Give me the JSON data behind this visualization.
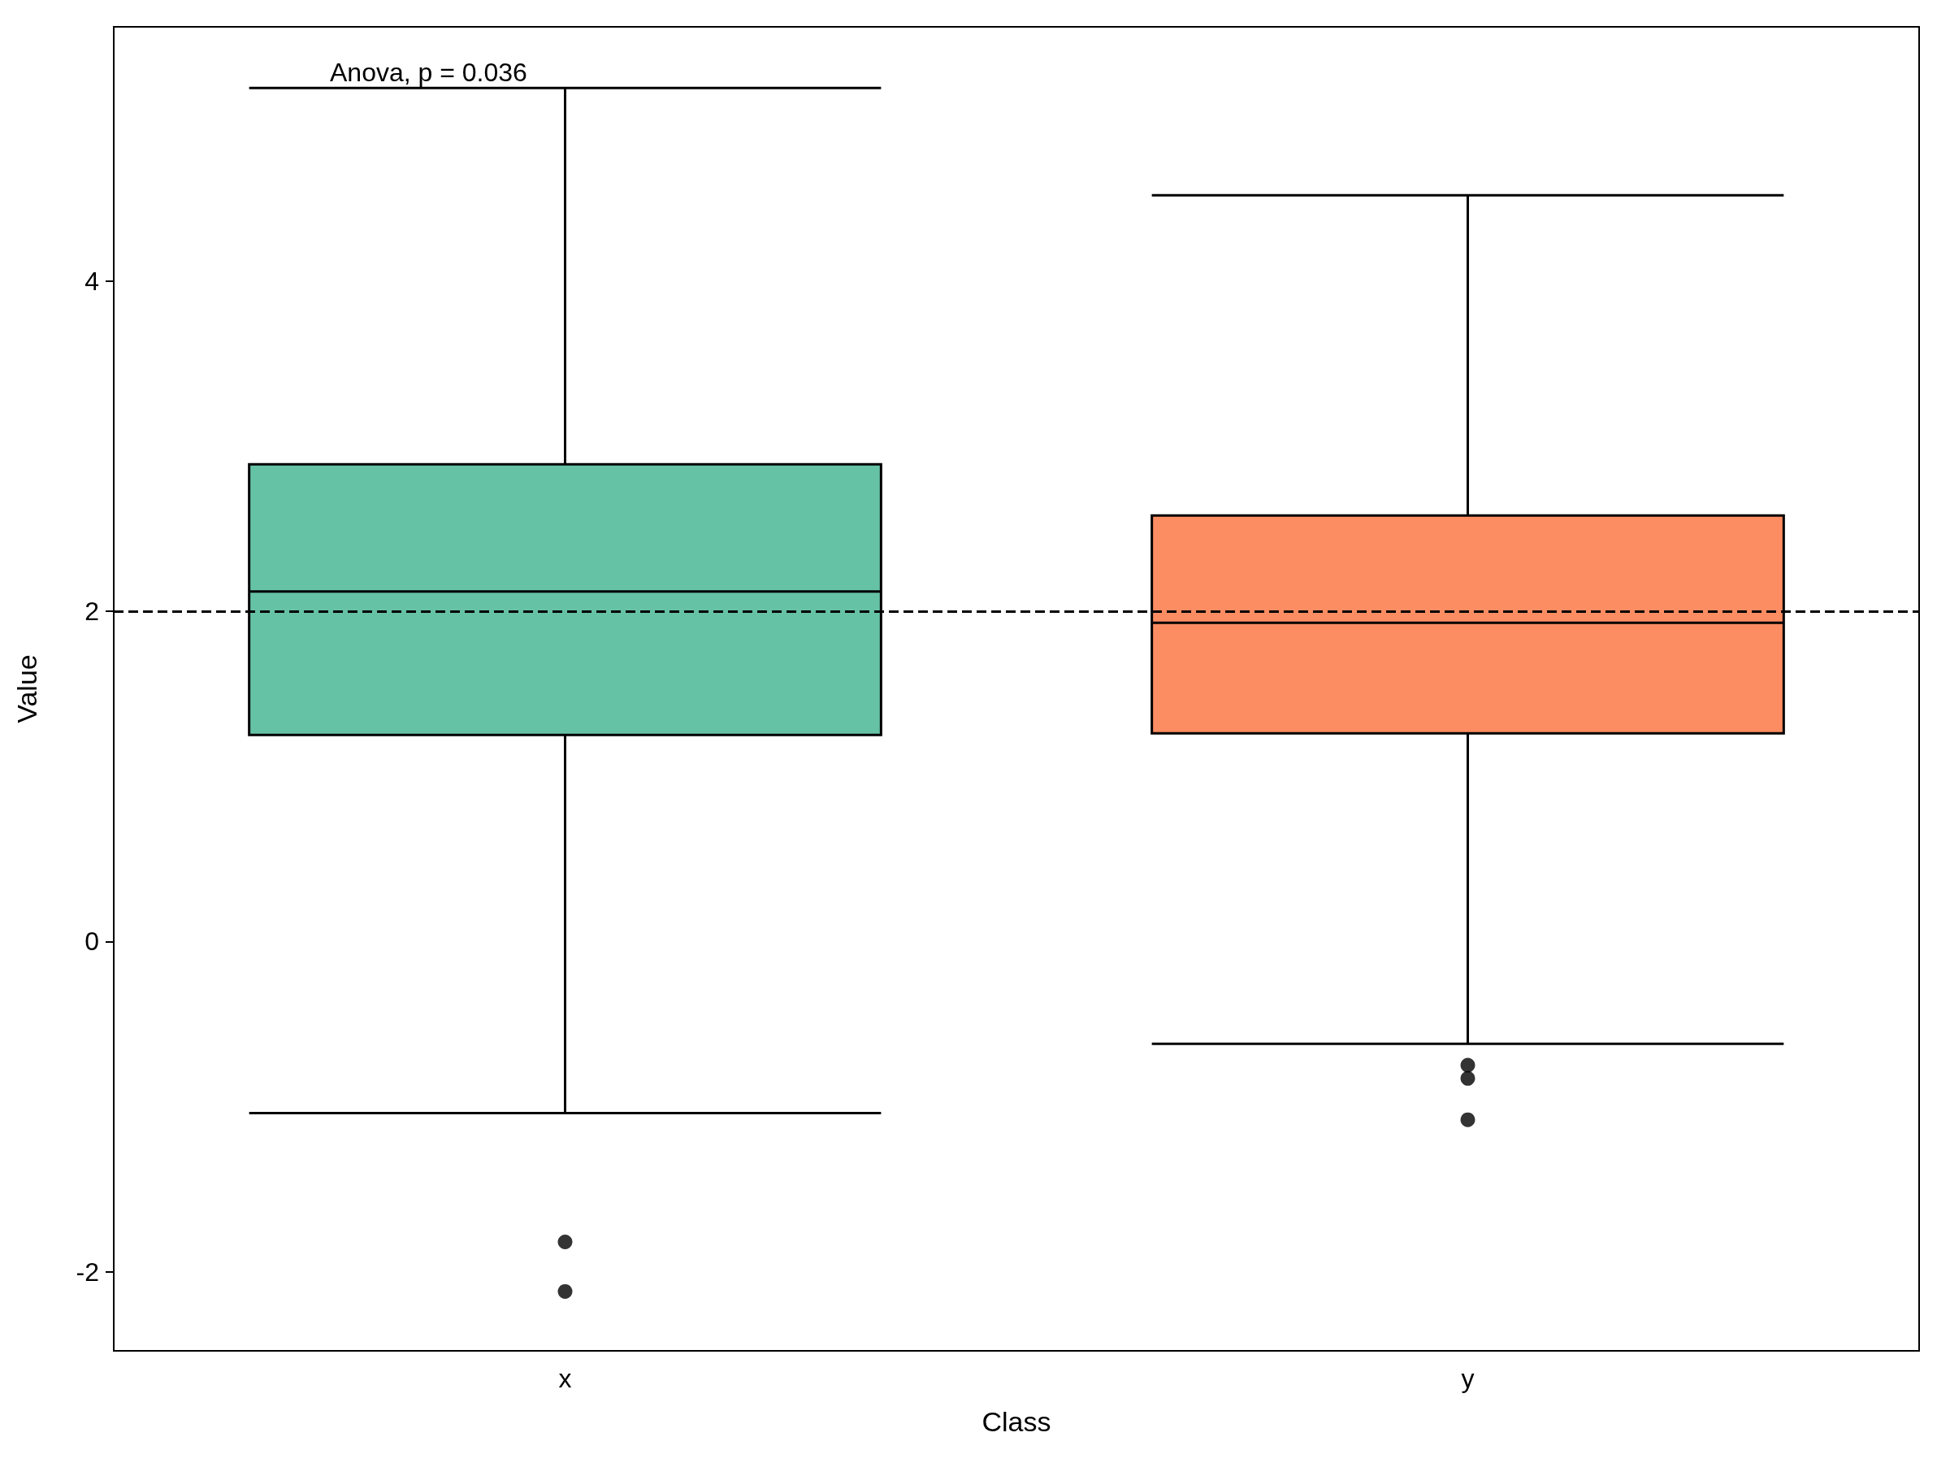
{
  "chart_data": {
    "type": "box",
    "xlabel": "Class",
    "ylabel": "Value",
    "categories": [
      "x",
      "y"
    ],
    "boxes": [
      {
        "low": -1.04,
        "q1": 1.25,
        "median": 2.12,
        "q3": 2.89,
        "high": 5.17,
        "outliers": [
          -1.82,
          -2.12
        ]
      },
      {
        "low": -0.62,
        "q1": 1.26,
        "median": 1.93,
        "q3": 2.58,
        "high": 4.52,
        "outliers": [
          -0.75,
          -0.83,
          -1.08
        ]
      }
    ],
    "colors": [
      "#66c2a5",
      "#fc8d62"
    ],
    "ylim": [
      -2.48,
      5.54
    ],
    "yticks": [
      -2,
      0,
      2,
      4
    ],
    "ref_lines": [
      {
        "axis": "y",
        "value": 2,
        "line_style": "dashed",
        "color": "#000000"
      }
    ],
    "annotations": [
      "Anova, p = 0.036"
    ]
  }
}
